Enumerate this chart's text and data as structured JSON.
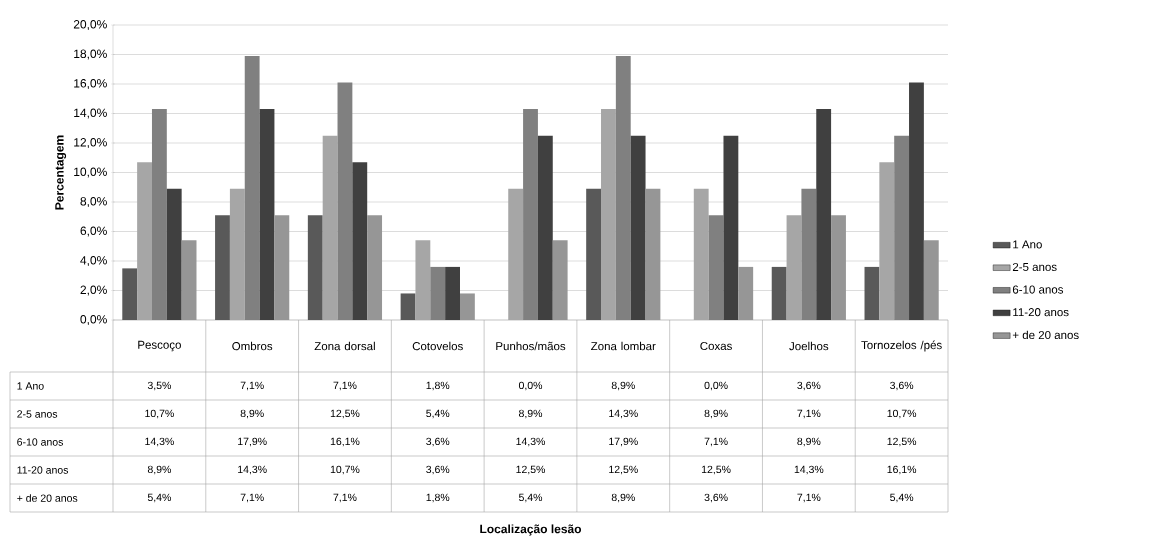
{
  "chart_data": {
    "type": "bar",
    "annotations": [
      "Localização lesão"
    ],
    "ylabel": "Percentagem",
    "categories": [
      "Pescoço",
      "Ombros",
      "Zona dorsal",
      "Cotovelos",
      "Punhos/mãos",
      "Zona lombar",
      "Coxas",
      "Joelhos",
      "Tornozelos /pés"
    ],
    "series": [
      {
        "name": "1 Ano",
        "color": "#595959",
        "values": [
          3.5,
          7.1,
          7.1,
          1.8,
          0.0,
          8.9,
          0.0,
          3.6,
          3.6
        ],
        "value_labels": [
          "3,5%",
          "7,1%",
          "7,1%",
          "1,8%",
          "0,0%",
          "8,9%",
          "0,0%",
          "3,6%",
          "3,6%"
        ]
      },
      {
        "name": "2-5 anos",
        "color": "#a6a6a6",
        "values": [
          10.7,
          8.9,
          12.5,
          5.4,
          8.9,
          14.3,
          8.9,
          7.1,
          10.7
        ],
        "value_labels": [
          "10,7%",
          "8,9%",
          "12,5%",
          "5,4%",
          "8,9%",
          "14,3%",
          "8,9%",
          "7,1%",
          "10,7%"
        ]
      },
      {
        "name": "6-10 anos",
        "color": "#808080",
        "values": [
          14.3,
          17.9,
          16.1,
          3.6,
          14.3,
          17.9,
          7.1,
          8.9,
          12.5
        ],
        "value_labels": [
          "14,3%",
          "17,9%",
          "16,1%",
          "3,6%",
          "14,3%",
          "17,9%",
          "7,1%",
          "8,9%",
          "12,5%"
        ]
      },
      {
        "name": "11-20 anos",
        "color": "#404040",
        "values": [
          8.9,
          14.3,
          10.7,
          3.6,
          12.5,
          12.5,
          12.5,
          14.3,
          16.1
        ],
        "value_labels": [
          "8,9%",
          "14,3%",
          "10,7%",
          "3,6%",
          "12,5%",
          "12,5%",
          "12,5%",
          "14,3%",
          "16,1%"
        ]
      },
      {
        "name": "+ de 20 anos",
        "color": "#969696",
        "values": [
          5.4,
          7.1,
          7.1,
          1.8,
          5.4,
          8.9,
          3.6,
          7.1,
          5.4
        ],
        "value_labels": [
          "5,4%",
          "7,1%",
          "7,1%",
          "1,8%",
          "5,4%",
          "8,9%",
          "3,6%",
          "7,1%",
          "5,4%"
        ]
      }
    ],
    "ylim": [
      0,
      20
    ],
    "yticks": [
      {
        "value": 0,
        "label": "0,0%"
      },
      {
        "value": 2,
        "label": "2,0%"
      },
      {
        "value": 4,
        "label": "4,0%"
      },
      {
        "value": 6,
        "label": "6,0%"
      },
      {
        "value": 8,
        "label": "8,0%"
      },
      {
        "value": 10,
        "label": "10,0%"
      },
      {
        "value": 12,
        "label": "12,0%"
      },
      {
        "value": 14,
        "label": "14,0%"
      },
      {
        "value": 16,
        "label": "16,0%"
      },
      {
        "value": 18,
        "label": "18,0%"
      },
      {
        "value": 20,
        "label": "20,0%"
      }
    ],
    "grid": "y",
    "legend": "right"
  }
}
